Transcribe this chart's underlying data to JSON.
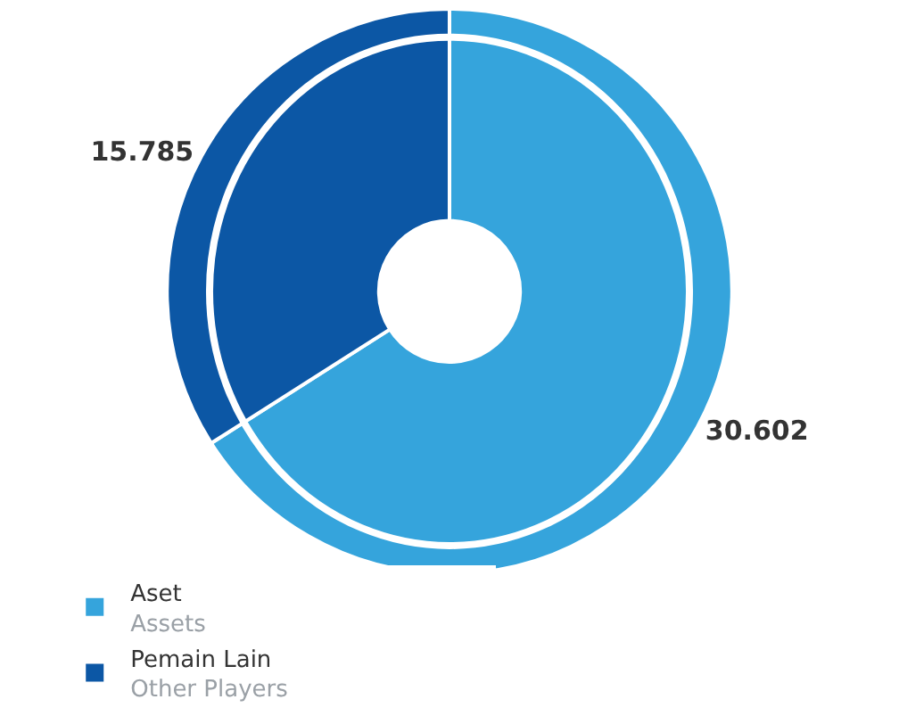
{
  "chart_data": {
    "type": "donut",
    "categories": [
      "Aset\nAssets",
      "Pemain Lain\nOther Players"
    ],
    "values": [
      30.602,
      15.785
    ],
    "colors": [
      "#35a4dc",
      "#0c57a5"
    ],
    "data_labels": true,
    "legend": "bottom"
  }
}
